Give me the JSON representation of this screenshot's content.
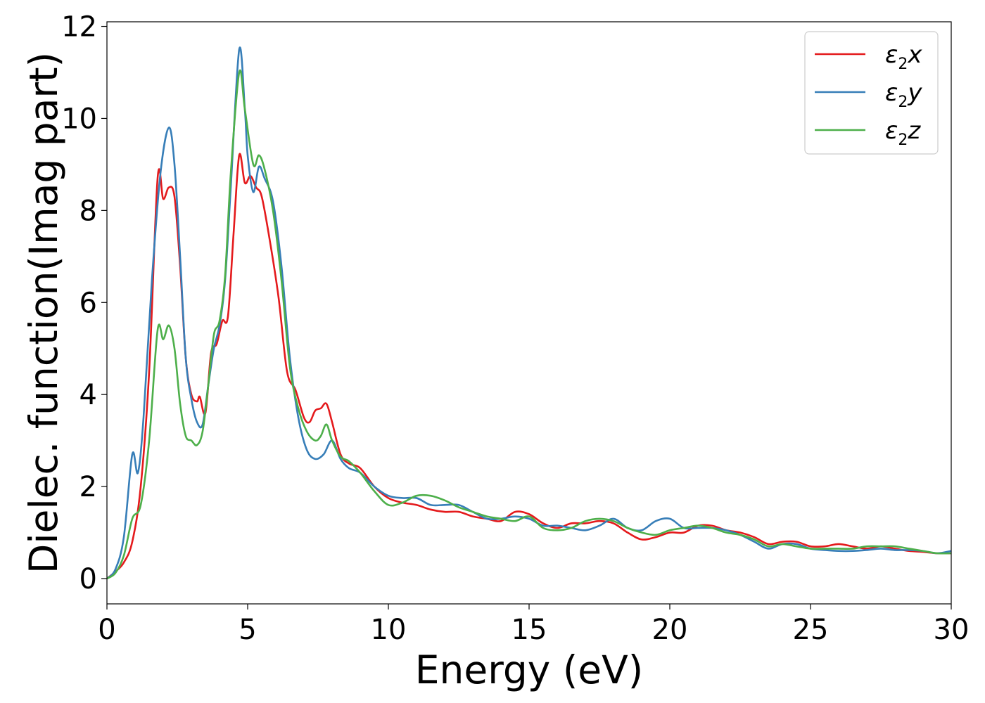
{
  "chart_data": {
    "type": "line",
    "xlabel": "Energy (eV)",
    "ylabel": "Dielec. function(Imag part)",
    "xlim": [
      0,
      30
    ],
    "ylim": [
      -0.55,
      12.1
    ],
    "xticks": [
      0,
      5,
      10,
      15,
      20,
      25,
      30
    ],
    "yticks": [
      0,
      2,
      4,
      6,
      8,
      10,
      12
    ],
    "grid": false,
    "legend_position": "top-right",
    "series": [
      {
        "name": "ε2x",
        "legend": {
          "base": "ε",
          "sub": "2",
          "var": "x"
        },
        "color": "#e41a1c",
        "x": [
          0,
          0.3,
          0.6,
          0.9,
          1.2,
          1.5,
          1.8,
          2.0,
          2.2,
          2.4,
          2.6,
          2.8,
          3.0,
          3.2,
          3.3,
          3.5,
          3.7,
          3.9,
          4.1,
          4.3,
          4.5,
          4.7,
          4.9,
          5.1,
          5.3,
          5.5,
          5.8,
          6.1,
          6.4,
          6.7,
          7.0,
          7.2,
          7.4,
          7.6,
          7.8,
          8.0,
          8.3,
          8.6,
          9.0,
          9.5,
          10,
          10.5,
          11,
          11.5,
          12,
          12.5,
          13,
          13.5,
          14,
          14.5,
          15,
          15.5,
          16,
          16.5,
          17,
          17.5,
          18,
          18.5,
          19,
          19.5,
          20,
          20.5,
          21,
          21.5,
          22,
          22.5,
          23,
          23.5,
          24,
          24.5,
          25,
          25.5,
          26,
          26.5,
          27,
          27.5,
          28,
          28.5,
          29,
          29.5,
          30
        ],
        "y": [
          0,
          0.15,
          0.35,
          0.8,
          2.0,
          4.5,
          8.7,
          8.25,
          8.5,
          8.3,
          6.8,
          4.8,
          4.0,
          3.85,
          3.95,
          3.6,
          4.9,
          5.1,
          5.6,
          5.7,
          7.5,
          9.2,
          8.6,
          8.75,
          8.5,
          8.3,
          7.3,
          6.1,
          4.5,
          4.1,
          3.5,
          3.4,
          3.65,
          3.7,
          3.8,
          3.4,
          2.7,
          2.5,
          2.4,
          2.0,
          1.75,
          1.65,
          1.6,
          1.5,
          1.45,
          1.45,
          1.35,
          1.3,
          1.25,
          1.45,
          1.4,
          1.2,
          1.1,
          1.2,
          1.2,
          1.25,
          1.2,
          1.0,
          0.85,
          0.9,
          1.0,
          1.0,
          1.15,
          1.15,
          1.05,
          1.0,
          0.9,
          0.75,
          0.8,
          0.8,
          0.7,
          0.7,
          0.75,
          0.7,
          0.65,
          0.7,
          0.65,
          0.6,
          0.58,
          0.55,
          0.55
        ]
      },
      {
        "name": "ε2y",
        "legend": {
          "base": "ε",
          "sub": "2",
          "var": "y"
        },
        "color": "#377eb8",
        "x": [
          0,
          0.3,
          0.6,
          0.9,
          1.1,
          1.3,
          1.6,
          1.9,
          2.2,
          2.4,
          2.6,
          2.8,
          3.0,
          3.2,
          3.4,
          3.6,
          3.8,
          4.0,
          4.2,
          4.4,
          4.7,
          4.9,
          5.0,
          5.2,
          5.4,
          5.6,
          5.9,
          6.2,
          6.5,
          6.8,
          7.1,
          7.4,
          7.7,
          8.0,
          8.3,
          8.6,
          9.0,
          9.5,
          10,
          10.5,
          11,
          11.5,
          12,
          12.5,
          13,
          13.5,
          14,
          14.5,
          15,
          15.5,
          16,
          16.5,
          17,
          17.5,
          18,
          18.5,
          19,
          19.5,
          20,
          20.5,
          21,
          21.5,
          22,
          22.5,
          23,
          23.5,
          24,
          24.5,
          25,
          25.5,
          26,
          26.5,
          27,
          27.5,
          28,
          28.5,
          29,
          29.5,
          30
        ],
        "y": [
          0,
          0.2,
          0.9,
          2.7,
          2.3,
          3.5,
          6.5,
          8.8,
          9.8,
          9.0,
          7.0,
          4.8,
          3.9,
          3.4,
          3.35,
          4.2,
          5.0,
          5.5,
          6.5,
          8.5,
          11.5,
          10.2,
          9.2,
          8.4,
          8.95,
          8.7,
          8.2,
          6.8,
          4.8,
          3.5,
          2.8,
          2.6,
          2.7,
          3.0,
          2.6,
          2.4,
          2.3,
          2.0,
          1.8,
          1.75,
          1.75,
          1.6,
          1.6,
          1.6,
          1.45,
          1.3,
          1.3,
          1.35,
          1.3,
          1.15,
          1.15,
          1.1,
          1.05,
          1.15,
          1.3,
          1.1,
          1.05,
          1.25,
          1.3,
          1.1,
          1.1,
          1.1,
          1.05,
          0.95,
          0.8,
          0.65,
          0.75,
          0.75,
          0.65,
          0.62,
          0.6,
          0.6,
          0.62,
          0.65,
          0.62,
          0.62,
          0.6,
          0.55,
          0.6
        ]
      },
      {
        "name": "ε2z",
        "legend": {
          "base": "ε",
          "sub": "2",
          "var": "z"
        },
        "color": "#4daf4a",
        "x": [
          0,
          0.3,
          0.6,
          0.9,
          1.2,
          1.5,
          1.8,
          2.0,
          2.2,
          2.4,
          2.6,
          2.8,
          3.0,
          3.2,
          3.4,
          3.6,
          3.8,
          4.0,
          4.2,
          4.4,
          4.7,
          4.9,
          5.2,
          5.4,
          5.6,
          5.9,
          6.2,
          6.5,
          6.8,
          7.1,
          7.4,
          7.6,
          7.8,
          8.0,
          8.3,
          8.6,
          9.0,
          9.5,
          10,
          10.5,
          11,
          11.5,
          12,
          12.5,
          13,
          13.5,
          14,
          14.5,
          15,
          15.5,
          16,
          16.5,
          17,
          17.5,
          18,
          18.5,
          19,
          19.5,
          20,
          20.5,
          21,
          21.5,
          22,
          22.5,
          23,
          23.5,
          24,
          24.5,
          25,
          25.5,
          26,
          26.5,
          27,
          27.5,
          28,
          28.5,
          29,
          29.5,
          30
        ],
        "y": [
          0,
          0.12,
          0.5,
          1.3,
          1.6,
          3.0,
          5.4,
          5.2,
          5.5,
          5.0,
          3.8,
          3.1,
          3.0,
          2.9,
          3.2,
          4.2,
          5.3,
          5.6,
          6.6,
          8.8,
          11.0,
          10.2,
          9.0,
          9.2,
          8.9,
          8.0,
          6.5,
          4.6,
          3.7,
          3.2,
          3.0,
          3.1,
          3.35,
          3.0,
          2.65,
          2.55,
          2.3,
          1.9,
          1.6,
          1.65,
          1.8,
          1.8,
          1.7,
          1.55,
          1.45,
          1.35,
          1.3,
          1.25,
          1.35,
          1.1,
          1.05,
          1.1,
          1.25,
          1.3,
          1.25,
          1.1,
          1.0,
          0.95,
          1.05,
          1.1,
          1.15,
          1.1,
          1.0,
          0.95,
          0.85,
          0.7,
          0.75,
          0.7,
          0.65,
          0.65,
          0.65,
          0.65,
          0.7,
          0.7,
          0.7,
          0.65,
          0.6,
          0.55,
          0.55
        ]
      }
    ]
  }
}
